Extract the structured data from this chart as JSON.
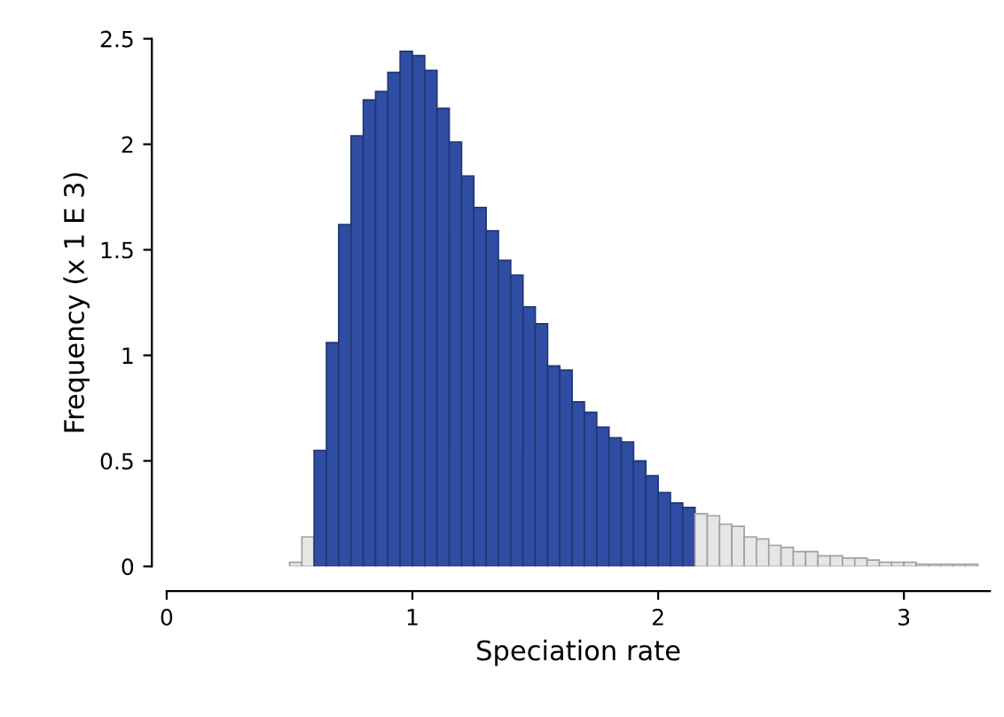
{
  "chart_data": {
    "type": "histogram",
    "xlabel": "Speciation rate",
    "ylabel": "Frequency (x 1 E 3)",
    "bins": [
      0.5,
      0.55,
      0.6,
      0.65,
      0.7,
      0.75,
      0.8,
      0.85,
      0.9,
      0.95,
      1.0,
      1.05,
      1.1,
      1.15,
      1.2,
      1.25,
      1.3,
      1.35,
      1.4,
      1.45,
      1.5,
      1.55,
      1.6,
      1.65,
      1.7,
      1.75,
      1.8,
      1.85,
      1.9,
      1.95,
      2.0,
      2.05,
      2.1,
      2.15,
      2.2,
      2.25,
      2.3,
      2.35,
      2.4,
      2.45,
      2.5,
      2.55,
      2.6,
      2.65,
      2.7,
      2.75,
      2.8,
      2.85,
      2.9,
      2.95,
      3.0,
      3.05,
      3.1,
      3.15,
      3.2,
      3.25,
      3.3
    ],
    "values": [
      0.02,
      0.14,
      0.55,
      1.06,
      1.62,
      2.04,
      2.21,
      2.25,
      2.34,
      2.44,
      2.42,
      2.35,
      2.17,
      2.01,
      1.85,
      1.7,
      1.59,
      1.45,
      1.38,
      1.23,
      1.15,
      0.95,
      0.93,
      0.78,
      0.73,
      0.66,
      0.61,
      0.59,
      0.5,
      0.43,
      0.35,
      0.3,
      0.28,
      0.25,
      0.24,
      0.2,
      0.19,
      0.14,
      0.13,
      0.1,
      0.09,
      0.07,
      0.07,
      0.05,
      0.05,
      0.04,
      0.04,
      0.03,
      0.02,
      0.02,
      0.02,
      0.01,
      0.01,
      0.01,
      0.01,
      0.01
    ],
    "colors": [
      "#e6e6e6",
      "#e6e6e6",
      "#2f4da3",
      "#2f4da3",
      "#2f4da3",
      "#2f4da3",
      "#2f4da3",
      "#2f4da3",
      "#2f4da3",
      "#2f4da3",
      "#2f4da3",
      "#2f4da3",
      "#2f4da3",
      "#2f4da3",
      "#2f4da3",
      "#2f4da3",
      "#2f4da3",
      "#2f4da3",
      "#2f4da3",
      "#2f4da3",
      "#2f4da3",
      "#2f4da3",
      "#2f4da3",
      "#2f4da3",
      "#2f4da3",
      "#2f4da3",
      "#2f4da3",
      "#2f4da3",
      "#2f4da3",
      "#2f4da3",
      "#2f4da3",
      "#2f4da3",
      "#2f4da3",
      "#e6e6e6",
      "#e6e6e6",
      "#e6e6e6",
      "#e6e6e6",
      "#e6e6e6",
      "#e6e6e6",
      "#e6e6e6",
      "#e6e6e6",
      "#e6e6e6",
      "#e6e6e6",
      "#e6e6e6",
      "#e6e6e6",
      "#e6e6e6",
      "#e6e6e6",
      "#e6e6e6",
      "#e6e6e6",
      "#e6e6e6",
      "#e6e6e6",
      "#e6e6e6",
      "#e6e6e6",
      "#e6e6e6",
      "#e6e6e6",
      "#e6e6e6"
    ],
    "xlim": [
      0,
      3.35
    ],
    "ylim": [
      0,
      2.5
    ],
    "xticks": [
      0,
      1,
      2,
      3
    ],
    "yticks": [
      0,
      0.5,
      1,
      1.5,
      2,
      2.5
    ],
    "grid": false
  }
}
